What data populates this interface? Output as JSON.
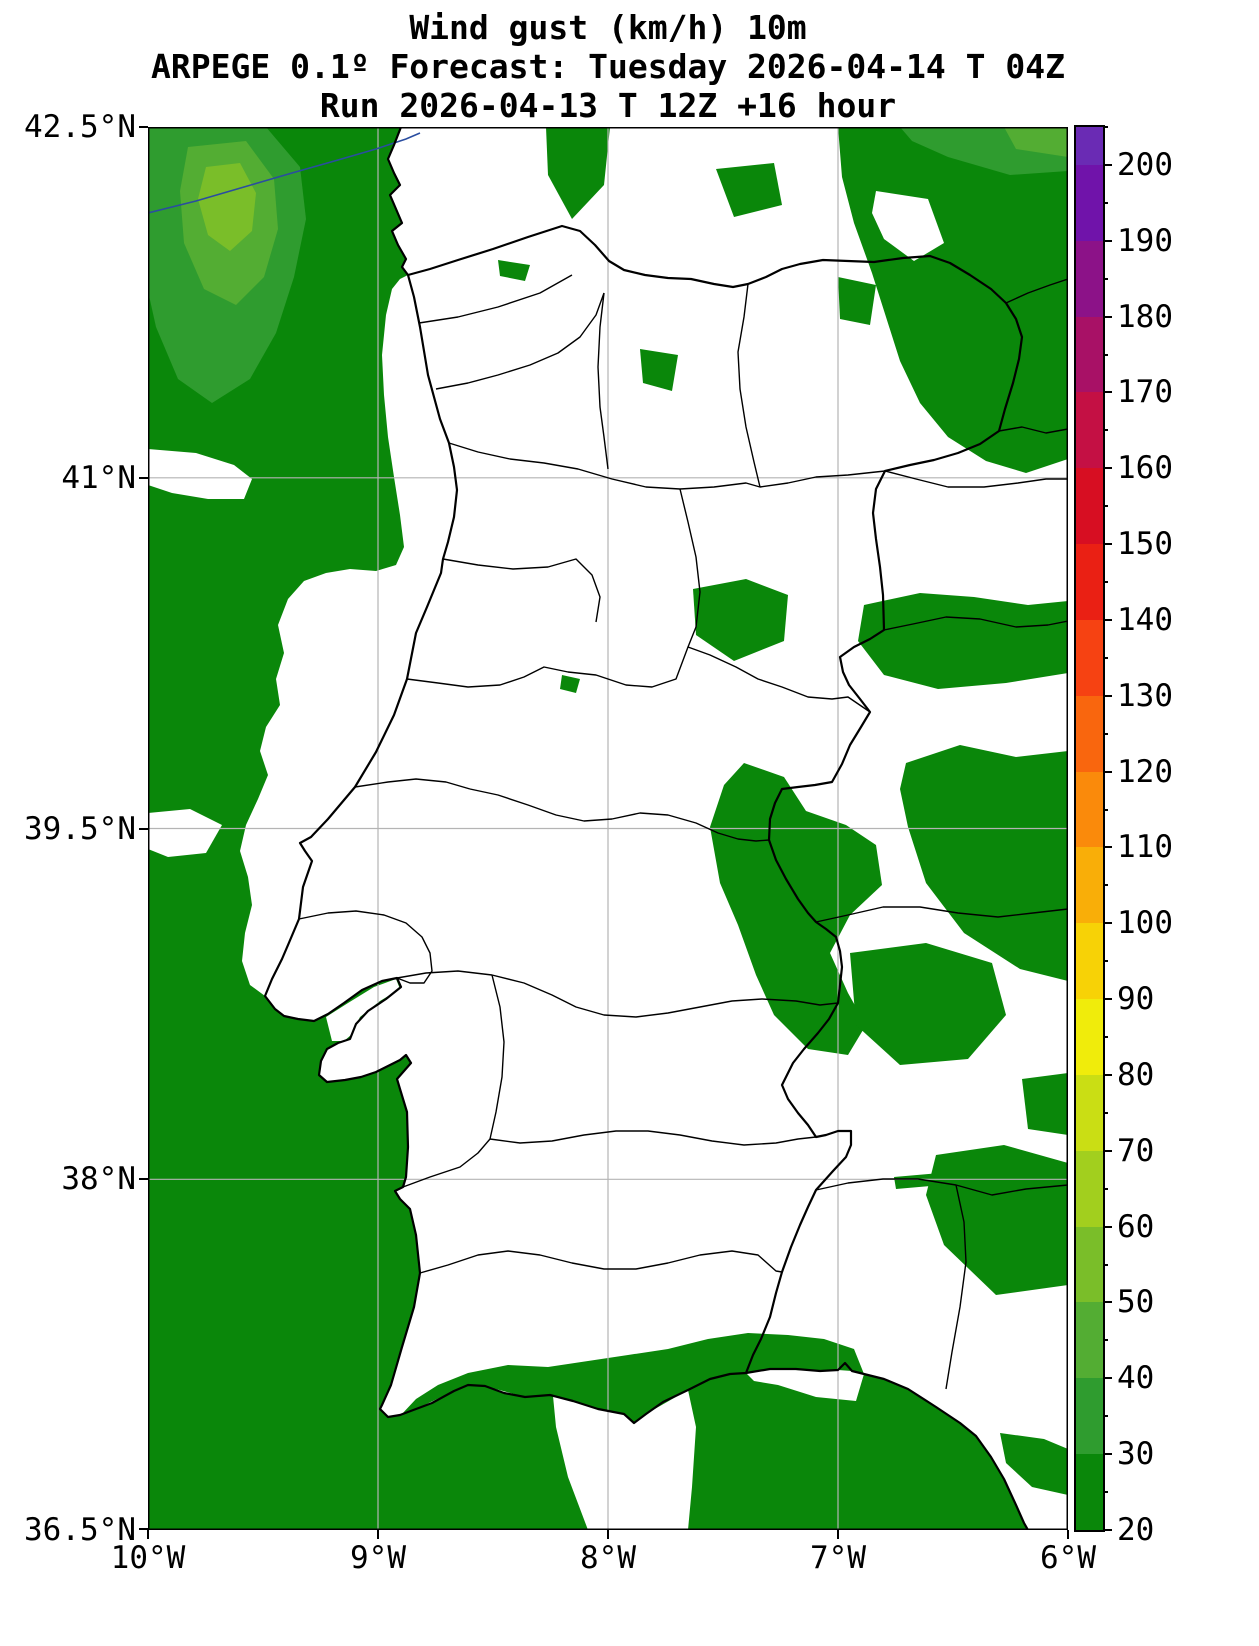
{
  "title": {
    "line1": "Wind gust (km/h) 10m",
    "line2": "ARPEGE 0.1º Forecast: Tuesday 2026-04-14 T 04Z",
    "line3": "Run 2026-04-13 T 12Z +16 hour"
  },
  "axes": {
    "lat_ticks": [
      "42.5°N",
      "41°N",
      "39.5°N",
      "38°N",
      "36.5°N"
    ],
    "lon_ticks": [
      "10°W",
      "9°W",
      "8°W",
      "7°W",
      "6°W"
    ]
  },
  "colorbar": {
    "scale_min": 20,
    "scale_max": 205,
    "tick_values": [
      200,
      190,
      180,
      170,
      160,
      150,
      140,
      130,
      120,
      110,
      100,
      90,
      80,
      70,
      60,
      50,
      40,
      30,
      20
    ],
    "stops": [
      {
        "value": 20,
        "color": "#0a870a"
      },
      {
        "value": 30,
        "color": "#2f9c2f"
      },
      {
        "value": 40,
        "color": "#53ad33"
      },
      {
        "value": 50,
        "color": "#7abe29"
      },
      {
        "value": 60,
        "color": "#a2cf1e"
      },
      {
        "value": 70,
        "color": "#cade14"
      },
      {
        "value": 80,
        "color": "#f0ec0b"
      },
      {
        "value": 90,
        "color": "#f7d206"
      },
      {
        "value": 100,
        "color": "#f9ae08"
      },
      {
        "value": 110,
        "color": "#fa8a0b"
      },
      {
        "value": 120,
        "color": "#f9660e"
      },
      {
        "value": 130,
        "color": "#f64212"
      },
      {
        "value": 140,
        "color": "#ea2014"
      },
      {
        "value": 150,
        "color": "#d70e22"
      },
      {
        "value": 160,
        "color": "#c41044"
      },
      {
        "value": 170,
        "color": "#a81166"
      },
      {
        "value": 180,
        "color": "#8c1288"
      },
      {
        "value": 190,
        "color": "#7013aa",
        "to": 200
      },
      {
        "value": 200,
        "color": "#6a2bb4",
        "to": 205
      }
    ]
  },
  "map": {
    "palette": {
      "g20": "#0a870a",
      "g30": "#2f9c2f",
      "g40": "#53ad33",
      "g50": "#7abe29"
    },
    "grid_color": "#b4b4b4",
    "river_color": "#2a4da0",
    "boundary_color": "#000000",
    "background": "#ffffff"
  }
}
